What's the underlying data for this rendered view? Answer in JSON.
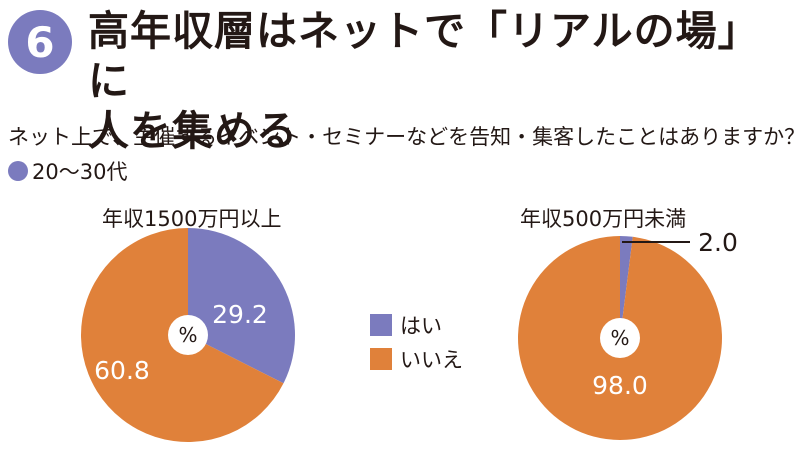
{
  "header": {
    "number": "6",
    "title_line1": "高年収層はネットで「リアルの場」に",
    "title_line2": "人を集める"
  },
  "question": "ネット上で、主催するイベント・セミナーなどを告知・集客したことはありますか？",
  "age_group": "20〜30代",
  "legend": [
    {
      "label": "はい",
      "color": "#7b7bbe"
    },
    {
      "label": "いいえ",
      "color": "#e0813a"
    }
  ],
  "colors": {
    "badge": "#7b7bbe",
    "yes": "#7b7bbe",
    "no": "#e0813a",
    "center_label": "#ffffff"
  },
  "chart_data": [
    {
      "type": "pie",
      "title": "年収1500万円以上",
      "center_label": "%",
      "slices": [
        {
          "label": "はい",
          "value": 29.2,
          "value_text": "29.2"
        },
        {
          "label": "いいえ",
          "value": 60.8,
          "value_text": "60.8"
        }
      ]
    },
    {
      "type": "pie",
      "title": "年収500万円未満",
      "center_label": "%",
      "slices": [
        {
          "label": "はい",
          "value": 2.0,
          "value_text": "2.0"
        },
        {
          "label": "いいえ",
          "value": 98.0,
          "value_text": "98.0"
        }
      ]
    }
  ]
}
